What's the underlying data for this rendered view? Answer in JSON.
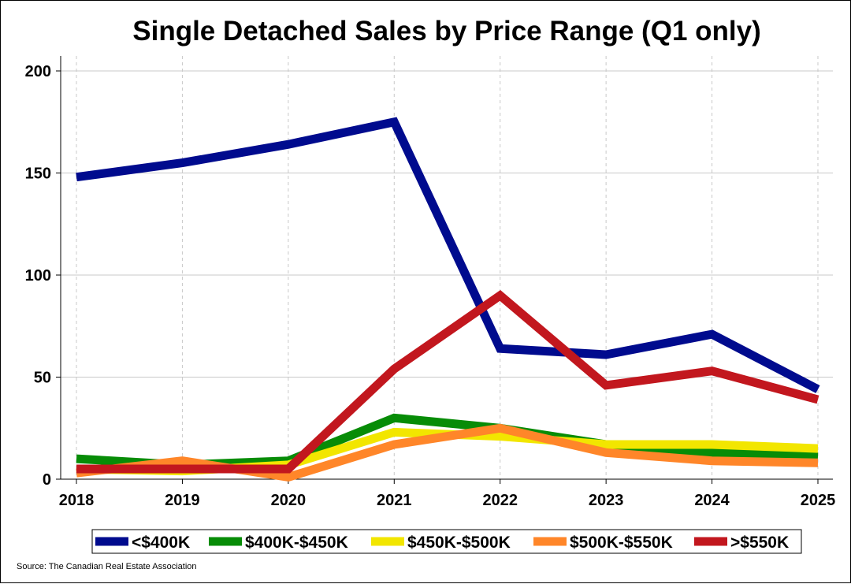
{
  "chart_data": {
    "type": "line",
    "title": "Single Detached Sales by Price Range (Q1 only)",
    "xlabel": "",
    "ylabel": "",
    "x": [
      "2018",
      "2019",
      "2020",
      "2021",
      "2022",
      "2023",
      "2024",
      "2025"
    ],
    "ylim": [
      0,
      200
    ],
    "yticks": [
      0,
      50,
      100,
      150,
      200
    ],
    "grid": true,
    "legend_position": "bottom",
    "series": [
      {
        "name": "<$400K",
        "color": "#000b8e",
        "values": [
          148,
          155,
          164,
          175,
          64,
          61,
          71,
          44
        ]
      },
      {
        "name": "$400K-$450K",
        "color": "#078c07",
        "values": [
          10,
          7,
          9,
          30,
          25,
          17,
          13,
          11
        ]
      },
      {
        "name": "$450K-$500K",
        "color": "#f2e600",
        "values": [
          5,
          4,
          7,
          23,
          21,
          17,
          17,
          15
        ]
      },
      {
        "name": "$500K-$550K",
        "color": "#ff8629",
        "values": [
          3,
          9,
          1,
          17,
          25,
          13,
          9,
          8
        ]
      },
      {
        "name": ">$550K",
        "color": "#c2171e",
        "values": [
          5,
          5,
          5,
          54,
          90,
          46,
          53,
          39
        ]
      }
    ],
    "source": "Source: The Canadian Real Estate Association"
  }
}
